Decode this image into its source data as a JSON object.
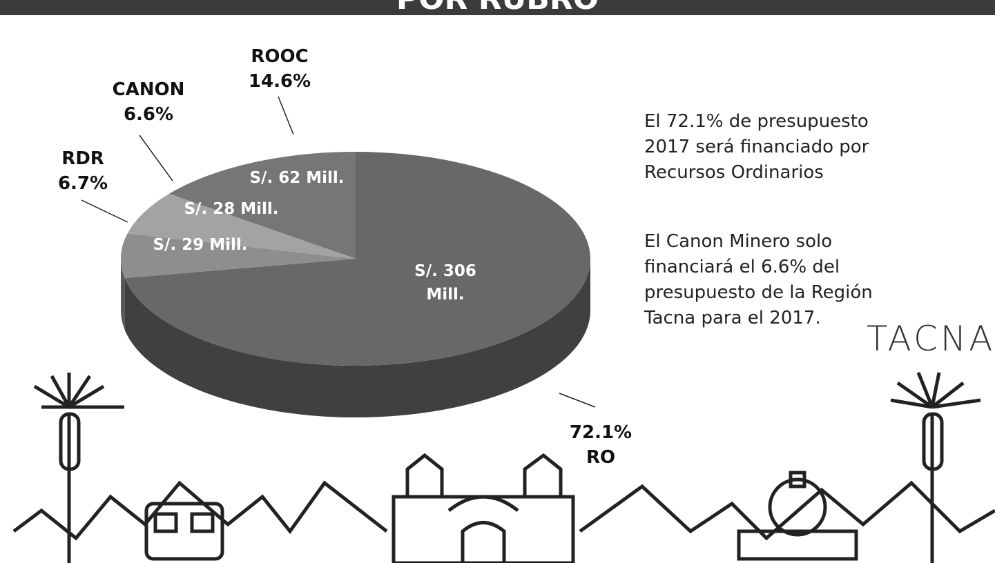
{
  "chart_data": {
    "type": "pie",
    "title": "POR RUBRO",
    "categories": [
      "RO",
      "RDR",
      "CANON",
      "ROOC"
    ],
    "values": [
      72.1,
      6.7,
      6.6,
      14.6
    ],
    "value_labels": [
      "72.1%",
      "6.7%",
      "6.6%",
      "14.6%"
    ],
    "amounts": [
      306,
      29,
      28,
      62
    ],
    "amount_labels": [
      "S/. 306 Mill.",
      "S/. 29 Mill.",
      "S/. 28 Mill.",
      "S/. 62 Mill."
    ],
    "colors": [
      "#686868",
      "#8e8e8e",
      "#a3a3a3",
      "#767676"
    ]
  },
  "notes": [
    "El 72.1% de presupuesto 2017 será financiado por Recursos Ordinarios",
    "El Canon Minero solo financiará el 6.6% del presupuesto de la Región Tacna para el 2017."
  ],
  "logo": "TACNA"
}
